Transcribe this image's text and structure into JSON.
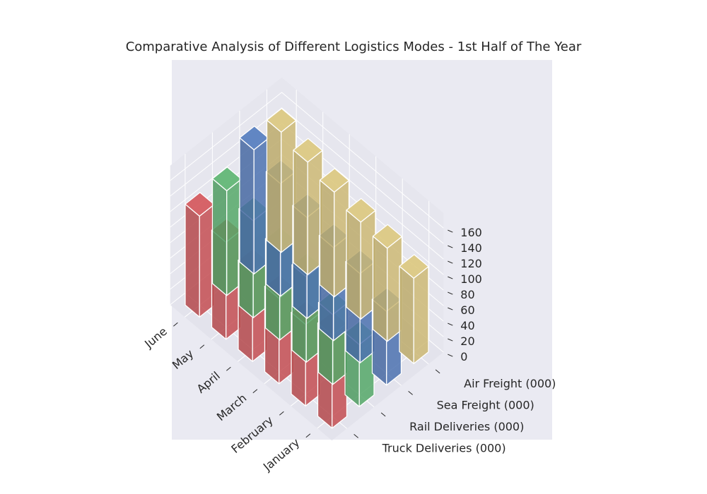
{
  "chart_data": {
    "type": "bar3d",
    "title": "Comparative Analysis of Different Logistics Modes - 1st Half of The Year",
    "xlabel": "",
    "ylabel": "",
    "zlabel": "",
    "categories": [
      "January",
      "February",
      "March",
      "April",
      "May",
      "June"
    ],
    "series": [
      {
        "name": "Truck Deliveries (000)",
        "color": "#c44e52",
        "values": [
          120,
          105,
          110,
          115,
          125,
          130
        ]
      },
      {
        "name": "Rail Deliveries (000)",
        "color": "#55a868",
        "values": [
          80,
          90,
          110,
          115,
          125,
          135
        ]
      },
      {
        "name": "Sea Freight (000)",
        "color": "#4c72b0",
        "values": [
          95,
          115,
          120,
          130,
          145,
          160
        ]
      },
      {
        "name": "Air Freight (000)",
        "color": "#ccb974",
        "values": [
          110,
          120,
          125,
          135,
          145,
          155
        ]
      }
    ],
    "zlim": [
      0,
      160
    ],
    "zticks": [
      0,
      20,
      40,
      60,
      80,
      100,
      120,
      140,
      160
    ],
    "grid": true,
    "legend": "none"
  }
}
